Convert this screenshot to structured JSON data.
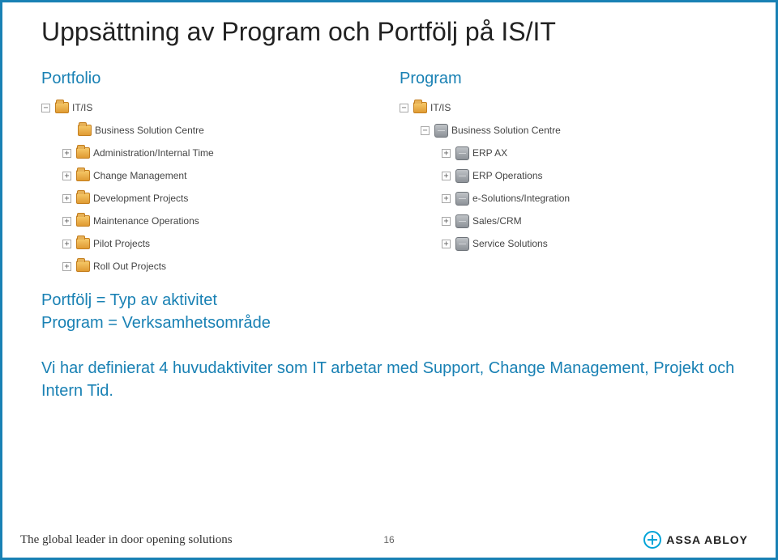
{
  "title": "Uppsättning av Program och Portfölj på IS/IT",
  "columns": {
    "left": {
      "header": "Portfolio",
      "root": {
        "label": "IT/IS",
        "iconType": "folder",
        "expander": "minus",
        "indent": 0
      },
      "items": [
        {
          "label": "Business Solution Centre",
          "iconType": "folder",
          "expander": "none",
          "indent": 1
        },
        {
          "label": "Administration/Internal Time",
          "iconType": "folder",
          "expander": "plus",
          "indent": 1
        },
        {
          "label": "Change Management",
          "iconType": "folder",
          "expander": "plus",
          "indent": 1
        },
        {
          "label": "Development Projects",
          "iconType": "folder",
          "expander": "plus",
          "indent": 1
        },
        {
          "label": "Maintenance Operations",
          "iconType": "folder",
          "expander": "plus",
          "indent": 1
        },
        {
          "label": "Pilot Projects",
          "iconType": "folder",
          "expander": "plus",
          "indent": 1
        },
        {
          "label": "Roll Out Projects",
          "iconType": "folder",
          "expander": "plus",
          "indent": 1
        }
      ]
    },
    "right": {
      "header": "Program",
      "root": {
        "label": "IT/IS",
        "iconType": "folder",
        "expander": "minus",
        "indent": 0
      },
      "items": [
        {
          "label": "Business Solution Centre",
          "iconType": "cube",
          "expander": "minus",
          "indent": 1
        },
        {
          "label": "ERP AX",
          "iconType": "cube",
          "expander": "plus",
          "indent": 2
        },
        {
          "label": "ERP Operations",
          "iconType": "cube",
          "expander": "plus",
          "indent": 2
        },
        {
          "label": "e-Solutions/Integration",
          "iconType": "cube",
          "expander": "plus",
          "indent": 2
        },
        {
          "label": "Sales/CRM",
          "iconType": "cube",
          "expander": "plus",
          "indent": 2
        },
        {
          "label": "Service Solutions",
          "iconType": "cube",
          "expander": "plus",
          "indent": 2
        }
      ]
    }
  },
  "body": {
    "line1": "Portfölj = Typ av aktivitet",
    "line2": "Program = Verksamhetsområde",
    "line3": "Vi har definierat 4 huvudaktiviter som IT arbetar med Support, Change Management, Projekt och Intern Tid."
  },
  "footer": {
    "tagline": "The global leader in door opening solutions",
    "pageNumber": "16",
    "logoText": "ASSA ABLOY"
  },
  "colors": {
    "border": "#1981b4",
    "headerText": "#1981b4",
    "bodyText": "#1981b4",
    "treeText": "#444444",
    "logoAccent": "#00a4d8"
  },
  "fonts": {
    "title_pt": 32,
    "columnHeader_pt": 20,
    "tree_pt": 12,
    "body_pt": 20,
    "tagline_pt": 15,
    "logo_pt": 14
  }
}
